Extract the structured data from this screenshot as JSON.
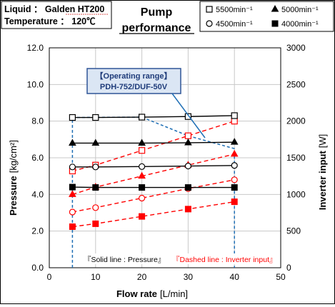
{
  "header": {
    "liquid_line": "Liquid ： Galden HT200",
    "temperature_line": "Temperature ： 120℃",
    "title_line1": "Pump",
    "title_line2": "performance"
  },
  "legend": [
    {
      "marker": "square-open",
      "label": "5500min⁻¹"
    },
    {
      "marker": "triangle-filled",
      "label": "5000min⁻¹"
    },
    {
      "marker": "circle-open",
      "label": "4500min⁻¹"
    },
    {
      "marker": "square-filled",
      "label": "4000min⁻¹"
    }
  ],
  "annotation": {
    "line1": "【Operating range】",
    "line2": "PDH-752/DUF-50V"
  },
  "notes": {
    "solid": "『Solid line : Pressure』",
    "dashed": "『Dashed line : Inverter input』"
  },
  "colors": {
    "pressure": "#000000",
    "inverter": "#ff0000",
    "range": "#1f6fb5",
    "annotation_bg": "#dbe6f4",
    "annotation_border": "#2f5597",
    "annotation_text": "#1f3c7a",
    "grid": "#c8c8c8"
  },
  "chart_data": {
    "type": "line",
    "xlabel": "Flow rate",
    "xlabel_unit": "[L/min]",
    "ylabel_left": "Pressure",
    "ylabel_left_unit": "[kg/cm²]",
    "ylabel_right": "Inverter input",
    "ylabel_right_unit": "[W]",
    "xlim": [
      0,
      50
    ],
    "ylim_left": [
      0,
      12
    ],
    "ylim_right": [
      0,
      3000
    ],
    "x_ticks": [
      "0",
      "10",
      "20",
      "30",
      "40",
      "50"
    ],
    "y_left_ticks": [
      "0.0",
      "2.0",
      "4.0",
      "6.0",
      "8.0",
      "10.0",
      "12.0"
    ],
    "y_right_ticks": [
      "0",
      "500",
      "1000",
      "1500",
      "2000",
      "2500",
      "3000"
    ],
    "grid": true,
    "x": [
      5,
      10,
      20,
      30,
      40
    ],
    "pressure_series": [
      {
        "name": "5500min⁻¹",
        "marker": "square-open",
        "values": [
          8.2,
          8.2,
          8.22,
          8.25,
          8.3
        ]
      },
      {
        "name": "5000min⁻¹",
        "marker": "triangle-filled",
        "values": [
          6.8,
          6.8,
          6.8,
          6.82,
          6.85
        ]
      },
      {
        "name": "4500min⁻¹",
        "marker": "circle-open",
        "values": [
          5.5,
          5.5,
          5.52,
          5.55,
          5.58
        ]
      },
      {
        "name": "4000min⁻¹",
        "marker": "square-filled",
        "values": [
          4.4,
          4.38,
          4.38,
          4.38,
          4.38
        ]
      }
    ],
    "inverter_series": [
      {
        "name": "5500min⁻¹",
        "marker": "square-open",
        "values": [
          1320,
          1400,
          1600,
          1800,
          2000
        ]
      },
      {
        "name": "5000min⁻¹",
        "marker": "triangle-filled",
        "values": [
          1000,
          1100,
          1250,
          1400,
          1550
        ]
      },
      {
        "name": "4500min⁻¹",
        "marker": "circle-open",
        "values": [
          760,
          820,
          950,
          1080,
          1200
        ]
      },
      {
        "name": "4000min⁻¹",
        "marker": "square-filled",
        "values": [
          560,
          600,
          700,
          800,
          900
        ]
      }
    ],
    "operating_range": {
      "x": [
        5,
        5,
        20,
        30,
        40,
        40
      ],
      "pressure": [
        0,
        8.2,
        8.22,
        7.2,
        6.5,
        0
      ]
    }
  }
}
